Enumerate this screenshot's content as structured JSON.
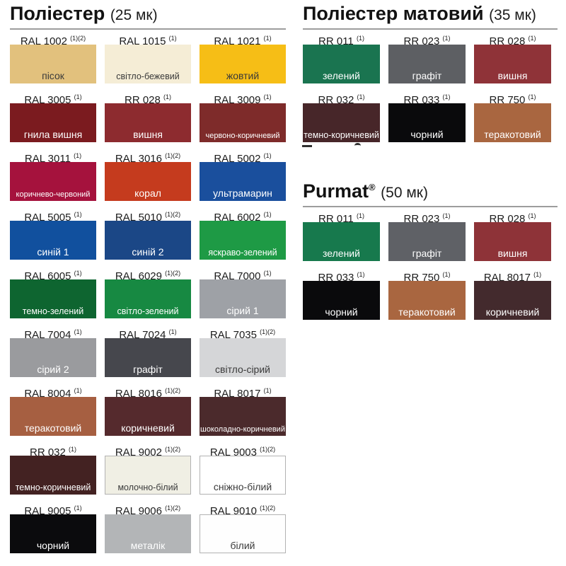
{
  "sections": [
    {
      "title": "Поліестер",
      "subtitle": "(25 мк)",
      "swatches": [
        {
          "code": "RAL 1002",
          "sup": "(1)(2)",
          "name": "пісок",
          "color": "#E2C17D",
          "text": "#3a3a3a",
          "border": false
        },
        {
          "code": "RAL 1015",
          "sup": "(1)",
          "name": "світло-бежевий",
          "color": "#F5EDD6",
          "text": "#3a3a3a",
          "border": false
        },
        {
          "code": "RAL 1021",
          "sup": "(1)",
          "name": "жовтий",
          "color": "#F6BE16",
          "text": "#3a3a3a",
          "border": false
        },
        {
          "code": "RAL 3005",
          "sup": "(1)",
          "name": "гнила вишня",
          "color": "#7B1B1F",
          "text": "#ffffff",
          "border": false
        },
        {
          "code": "RR 028",
          "sup": "(1)",
          "name": "вишня",
          "color": "#8D2B2F",
          "text": "#ffffff",
          "border": false
        },
        {
          "code": "RAL 3009",
          "sup": "(1)",
          "name": "червоно-коричневий",
          "color": "#7E2B2A",
          "text": "#ffffff",
          "border": false
        },
        {
          "code": "RAL 3011",
          "sup": "(1)",
          "name": "коричнево-червоний",
          "color": "#A5123D",
          "text": "#ffffff",
          "border": false
        },
        {
          "code": "RAL 3016",
          "sup": "(1)(2)",
          "name": "корал",
          "color": "#C53B1E",
          "text": "#ffffff",
          "border": false
        },
        {
          "code": "RAL 5002",
          "sup": "(1)",
          "name": "ультрамарин",
          "color": "#1A4F9D",
          "text": "#ffffff",
          "border": false
        },
        {
          "code": "RAL 5005",
          "sup": "(1)",
          "name": "синій 1",
          "color": "#11509E",
          "text": "#ffffff",
          "border": false
        },
        {
          "code": "RAL 5010",
          "sup": "(1)(2)",
          "name": "синій 2",
          "color": "#1B4786",
          "text": "#ffffff",
          "border": false
        },
        {
          "code": "RAL 6002",
          "sup": "(1)",
          "name": "яскраво-зелений",
          "color": "#1E9A45",
          "text": "#ffffff",
          "border": false
        },
        {
          "code": "RAL 6005",
          "sup": "(1)",
          "name": "темно-зелений",
          "color": "#0E6530",
          "text": "#ffffff",
          "border": false
        },
        {
          "code": "RAL 6029",
          "sup": "(1)(2)",
          "name": "світло-зелений",
          "color": "#178942",
          "text": "#ffffff",
          "border": false
        },
        {
          "code": "RAL 7000",
          "sup": "(1)",
          "name": "сірий 1",
          "color": "#9EA1A6",
          "text": "#ffffff",
          "border": false
        },
        {
          "code": "RAL 7004",
          "sup": "(1)",
          "name": "сірий 2",
          "color": "#9A9B9E",
          "text": "#ffffff",
          "border": false
        },
        {
          "code": "RAL 7024",
          "sup": "(1)",
          "name": "графіт",
          "color": "#46474D",
          "text": "#ffffff",
          "border": false
        },
        {
          "code": "RAL 7035",
          "sup": "(1)(2)",
          "name": "світло-сірий",
          "color": "#D5D6D8",
          "text": "#3a3a3a",
          "border": false
        },
        {
          "code": "RAL 8004",
          "sup": "(1)",
          "name": "теракотовий",
          "color": "#A65F41",
          "text": "#ffffff",
          "border": false
        },
        {
          "code": "RAL 8016",
          "sup": "(1)(2)",
          "name": "коричневий",
          "color": "#552A2D",
          "text": "#ffffff",
          "border": false
        },
        {
          "code": "RAL 8017",
          "sup": "(1)",
          "name": "шоколадно-коричневий",
          "color": "#4B2A2C",
          "text": "#ffffff",
          "border": false
        },
        {
          "code": "RR 032",
          "sup": "(1)",
          "name": "темно-коричневий",
          "color": "#432222",
          "text": "#ffffff",
          "border": false
        },
        {
          "code": "RAL 9002",
          "sup": "(1)(2)",
          "name": "молочно-білий",
          "color": "#F0EFE4",
          "text": "#3a3a3a",
          "border": true
        },
        {
          "code": "RAL 9003",
          "sup": "(1)(2)",
          "name": "сніжно-білий",
          "color": "#FFFFFF",
          "text": "#3a3a3a",
          "border": true
        },
        {
          "code": "RAL 9005",
          "sup": "(1)",
          "name": "чорний",
          "color": "#0B0B0D",
          "text": "#ffffff",
          "border": false
        },
        {
          "code": "RAL 9006",
          "sup": "(1)(2)",
          "name": "металік",
          "color": "#B3B5B7",
          "text": "#ffffff",
          "border": false
        },
        {
          "code": "RAL 9010",
          "sup": "(1)(2)",
          "name": "білий",
          "color": "#FEFEFE",
          "text": "#3a3a3a",
          "border": true
        }
      ]
    },
    {
      "title": "Поліестер матовий",
      "subtitle": "(35 мк)",
      "swatches": [
        {
          "code": "RR 011",
          "sup": "(1)",
          "name": "зелений",
          "color": "#1A7450",
          "text": "#ffffff",
          "border": false
        },
        {
          "code": "RR 023",
          "sup": "(1)",
          "name": "графіт",
          "color": "#5D5F63",
          "text": "#ffffff",
          "border": false
        },
        {
          "code": "RR 028",
          "sup": "(1)",
          "name": "вишня",
          "color": "#8F3338",
          "text": "#ffffff",
          "border": false
        },
        {
          "code": "RR 032",
          "sup": "(1)",
          "name": "темно-коричневий",
          "color": "#472629",
          "text": "#ffffff",
          "border": false
        },
        {
          "code": "RR 033",
          "sup": "(1)",
          "name": "чорний",
          "color": "#0A0A0C",
          "text": "#ffffff",
          "border": false
        },
        {
          "code": "RR 750",
          "sup": "(1)",
          "name": "теракотовий",
          "color": "#A96640",
          "text": "#ffffff",
          "border": false
        }
      ]
    },
    {
      "title": "Purmat",
      "title_sup": "®",
      "subtitle": "(50 мк)",
      "swatches": [
        {
          "code": "RR 011",
          "sup": "(1)",
          "name": "зелений",
          "color": "#17794D",
          "text": "#ffffff",
          "border": false
        },
        {
          "code": "RR 023",
          "sup": "(1)",
          "name": "графіт",
          "color": "#5F6166",
          "text": "#ffffff",
          "border": false
        },
        {
          "code": "RR 028",
          "sup": "(1)",
          "name": "вишня",
          "color": "#8E3338",
          "text": "#ffffff",
          "border": false
        },
        {
          "code": "RR 033",
          "sup": "(1)",
          "name": "чорний",
          "color": "#0A0A0C",
          "text": "#ffffff",
          "border": false
        },
        {
          "code": "RR 750",
          "sup": "(1)",
          "name": "теракотовий",
          "color": "#A96640",
          "text": "#ffffff",
          "border": false
        },
        {
          "code": "RAL 8017",
          "sup": "(1)",
          "name": "коричневий",
          "color": "#432A2D",
          "text": "#ffffff",
          "border": false
        }
      ]
    }
  ],
  "chart_data": [
    {
      "type": "table",
      "title": "Поліестер (25 мк)",
      "columns": [
        "code",
        "footnote",
        "name",
        "hex"
      ],
      "rows": [
        [
          "RAL 1002",
          "(1)(2)",
          "пісок",
          "#E2C17D"
        ],
        [
          "RAL 1015",
          "(1)",
          "світло-бежевий",
          "#F5EDD6"
        ],
        [
          "RAL 1021",
          "(1)",
          "жовтий",
          "#F6BE16"
        ],
        [
          "RAL 3005",
          "(1)",
          "гнила вишня",
          "#7B1B1F"
        ],
        [
          "RR 028",
          "(1)",
          "вишня",
          "#8D2B2F"
        ],
        [
          "RAL 3009",
          "(1)",
          "червоно-коричневий",
          "#7E2B2A"
        ],
        [
          "RAL 3011",
          "(1)",
          "коричнево-червоний",
          "#A5123D"
        ],
        [
          "RAL 3016",
          "(1)(2)",
          "корал",
          "#C53B1E"
        ],
        [
          "RAL 5002",
          "(1)",
          "ультрамарин",
          "#1A4F9D"
        ],
        [
          "RAL 5005",
          "(1)",
          "синій 1",
          "#11509E"
        ],
        [
          "RAL 5010",
          "(1)(2)",
          "синій 2",
          "#1B4786"
        ],
        [
          "RAL 6002",
          "(1)",
          "яскраво-зелений",
          "#1E9A45"
        ],
        [
          "RAL 6005",
          "(1)",
          "темно-зелений",
          "#0E6530"
        ],
        [
          "RAL 6029",
          "(1)(2)",
          "світло-зелений",
          "#178942"
        ],
        [
          "RAL 7000",
          "(1)",
          "сірий 1",
          "#9EA1A6"
        ],
        [
          "RAL 7004",
          "(1)",
          "сірий 2",
          "#9A9B9E"
        ],
        [
          "RAL 7024",
          "(1)",
          "графіт",
          "#46474D"
        ],
        [
          "RAL 7035",
          "(1)(2)",
          "світло-сірий",
          "#D5D6D8"
        ],
        [
          "RAL 8004",
          "(1)",
          "теракотовий",
          "#A65F41"
        ],
        [
          "RAL 8016",
          "(1)(2)",
          "коричневий",
          "#552A2D"
        ],
        [
          "RAL 8017",
          "(1)",
          "шоколадно-коричневий",
          "#4B2A2C"
        ],
        [
          "RR 032",
          "(1)",
          "темно-коричневий",
          "#432222"
        ],
        [
          "RAL 9002",
          "(1)(2)",
          "молочно-білий",
          "#F0EFE4"
        ],
        [
          "RAL 9003",
          "(1)(2)",
          "сніжно-білий",
          "#FFFFFF"
        ],
        [
          "RAL 9005",
          "(1)",
          "чорний",
          "#0B0B0D"
        ],
        [
          "RAL 9006",
          "(1)(2)",
          "металік",
          "#B3B5B7"
        ],
        [
          "RAL 9010",
          "(1)(2)",
          "білий",
          "#FEFEFE"
        ]
      ]
    },
    {
      "type": "table",
      "title": "Поліестер матовий (35 мк)",
      "columns": [
        "code",
        "footnote",
        "name",
        "hex"
      ],
      "rows": [
        [
          "RR 011",
          "(1)",
          "зелений",
          "#1A7450"
        ],
        [
          "RR 023",
          "(1)",
          "графіт",
          "#5D5F63"
        ],
        [
          "RR 028",
          "(1)",
          "вишня",
          "#8F3338"
        ],
        [
          "RR 032",
          "(1)",
          "темно-коричневий",
          "#472629"
        ],
        [
          "RR 033",
          "(1)",
          "чорний",
          "#0A0A0C"
        ],
        [
          "RR 750",
          "(1)",
          "теракотовий",
          "#A96640"
        ]
      ]
    },
    {
      "type": "table",
      "title": "Purmat® (50 мк)",
      "columns": [
        "code",
        "footnote",
        "name",
        "hex"
      ],
      "rows": [
        [
          "RR 011",
          "(1)",
          "зелений",
          "#17794D"
        ],
        [
          "RR 023",
          "(1)",
          "графіт",
          "#5F6166"
        ],
        [
          "RR 028",
          "(1)",
          "вишня",
          "#8E3338"
        ],
        [
          "RR 033",
          "(1)",
          "чорний",
          "#0A0A0C"
        ],
        [
          "RR 750",
          "(1)",
          "теракотовий",
          "#A96640"
        ],
        [
          "RAL 8017",
          "(1)",
          "коричневий",
          "#432A2D"
        ]
      ]
    }
  ]
}
